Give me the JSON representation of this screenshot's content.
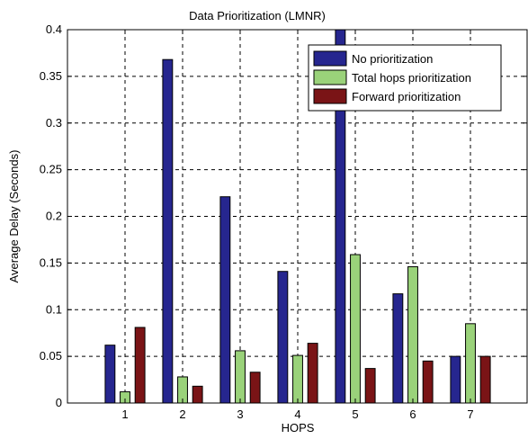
{
  "chart_data": {
    "type": "bar",
    "title": "Data Prioritization (LMNR)",
    "xlabel": "HOPS",
    "ylabel": "Average Delay (Seconds)",
    "categories": [
      "1",
      "2",
      "3",
      "4",
      "5",
      "6",
      "7"
    ],
    "ylim": [
      0,
      0.4
    ],
    "yticks": [
      "0",
      "0.05",
      "0.1",
      "0.15",
      "0.2",
      "0.25",
      "0.3",
      "0.35",
      "0.4"
    ],
    "xlim": [
      0,
      8
    ],
    "grid": true,
    "legend_position": "top-right",
    "series": [
      {
        "name": "No prioritization",
        "color": "#26268f",
        "values": [
          0.062,
          0.368,
          0.221,
          0.141,
          0.401,
          0.117,
          0.05
        ]
      },
      {
        "name": "Total hops prioritization",
        "color": "#9ad27a",
        "values": [
          0.012,
          0.028,
          0.056,
          0.051,
          0.159,
          0.146,
          0.085
        ]
      },
      {
        "name": "Forward prioritization",
        "color": "#7a1416",
        "values": [
          0.081,
          0.018,
          0.033,
          0.064,
          0.037,
          0.045,
          0.05
        ]
      }
    ]
  }
}
